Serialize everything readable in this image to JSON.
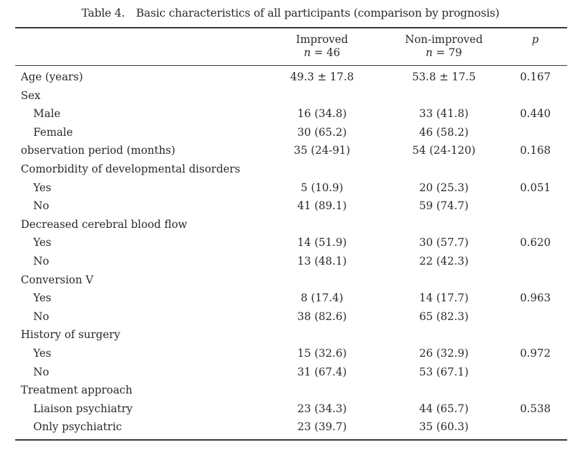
{
  "caption": {
    "number": "Table 4.",
    "title": "Basic characteristics of all participants (comparison by prognosis)"
  },
  "header": {
    "improved": {
      "label": "Improved",
      "n_symbol": "n",
      "n_text": "= 46"
    },
    "non_improved": {
      "label": "Non-improved",
      "n_symbol": "n",
      "n_text": "= 79"
    },
    "p_label": "p"
  },
  "rows": [
    {
      "label": "Age (years)",
      "indent": false,
      "improved": "49.3 ± 17.8",
      "non_improved": "53.8 ± 17.5",
      "p": "0.167"
    },
    {
      "label": "Sex",
      "indent": false,
      "improved": "",
      "non_improved": "",
      "p": ""
    },
    {
      "label": "Male",
      "indent": true,
      "improved": "16 (34.8)",
      "non_improved": "33 (41.8)",
      "p": "0.440"
    },
    {
      "label": "Female",
      "indent": true,
      "improved": "30 (65.2)",
      "non_improved": "46 (58.2)",
      "p": ""
    },
    {
      "label": "observation period (months)",
      "indent": false,
      "improved": "35 (24-91)",
      "non_improved": "54 (24-120)",
      "p": "0.168"
    },
    {
      "label": "Comorbidity of developmental disorders",
      "indent": false,
      "improved": "",
      "non_improved": "",
      "p": ""
    },
    {
      "label": "Yes",
      "indent": true,
      "improved": "5 (10.9)",
      "non_improved": "20 (25.3)",
      "p": "0.051"
    },
    {
      "label": "No",
      "indent": true,
      "improved": "41 (89.1)",
      "non_improved": "59 (74.7)",
      "p": ""
    },
    {
      "label": "Decreased cerebral blood flow",
      "indent": false,
      "improved": "",
      "non_improved": "",
      "p": ""
    },
    {
      "label": "Yes",
      "indent": true,
      "improved": "14 (51.9)",
      "non_improved": "30 (57.7)",
      "p": "0.620"
    },
    {
      "label": "No",
      "indent": true,
      "improved": "13 (48.1)",
      "non_improved": "22 (42.3)",
      "p": ""
    },
    {
      "label": "Conversion V",
      "indent": false,
      "improved": "",
      "non_improved": "",
      "p": ""
    },
    {
      "label": "Yes",
      "indent": true,
      "improved": "8 (17.4)",
      "non_improved": "14 (17.7)",
      "p": "0.963"
    },
    {
      "label": "No",
      "indent": true,
      "improved": "38 (82.6)",
      "non_improved": "65 (82.3)",
      "p": ""
    },
    {
      "label": "History of surgery",
      "indent": false,
      "improved": "",
      "non_improved": "",
      "p": ""
    },
    {
      "label": "Yes",
      "indent": true,
      "improved": "15 (32.6)",
      "non_improved": "26 (32.9)",
      "p": "0.972"
    },
    {
      "label": "No",
      "indent": true,
      "improved": "31 (67.4)",
      "non_improved": "53 (67.1)",
      "p": ""
    },
    {
      "label": "Treatment approach",
      "indent": false,
      "improved": "",
      "non_improved": "",
      "p": ""
    },
    {
      "label": "Liaison psychiatry",
      "indent": true,
      "improved": "23 (34.3)",
      "non_improved": "44 (65.7)",
      "p": "0.538"
    },
    {
      "label": "Only psychiatric",
      "indent": true,
      "improved": "23 (39.7)",
      "non_improved": "35 (60.3)",
      "p": ""
    }
  ]
}
